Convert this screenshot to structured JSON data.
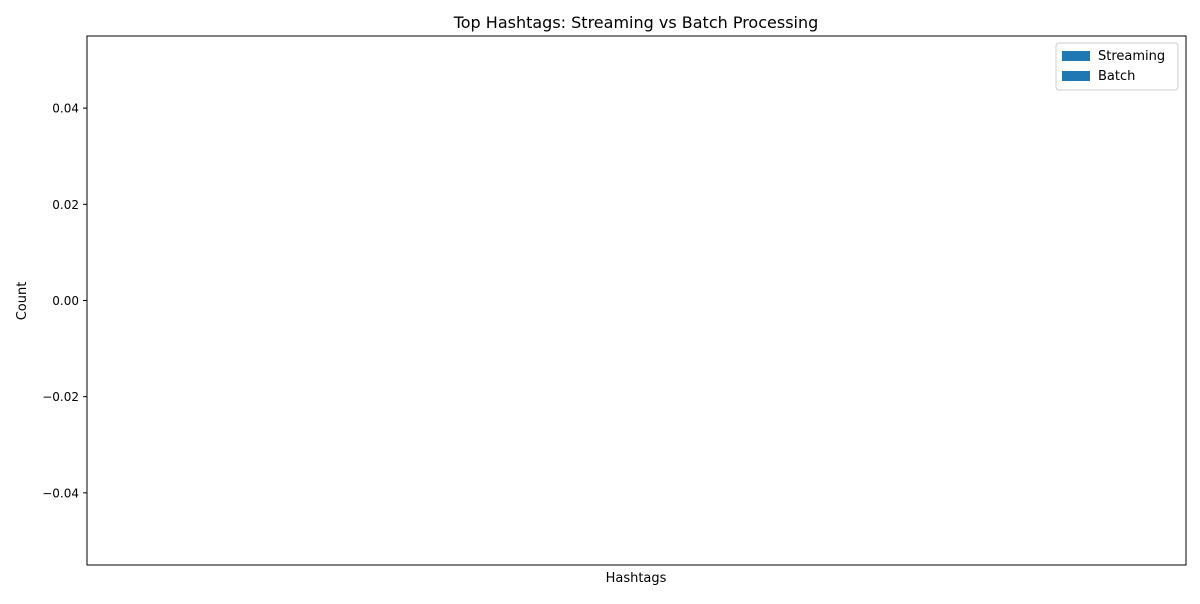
{
  "chart_data": {
    "type": "bar",
    "title": "Top Hashtags: Streaming vs Batch Processing",
    "xlabel": "Hashtags",
    "ylabel": "Count",
    "categories": [],
    "series": [
      {
        "name": "Streaming",
        "values": [],
        "color": "#1f77b4"
      },
      {
        "name": "Batch",
        "values": [],
        "color": "#1f77b4"
      }
    ],
    "ylim": [
      -0.055,
      0.055
    ],
    "yticks": [
      -0.04,
      -0.02,
      0.0,
      0.02,
      0.04
    ],
    "ytick_labels": [
      "−0.04",
      "−0.02",
      "0.00",
      "0.02",
      "0.04"
    ],
    "grid": false,
    "legend_position": "upper-right"
  }
}
